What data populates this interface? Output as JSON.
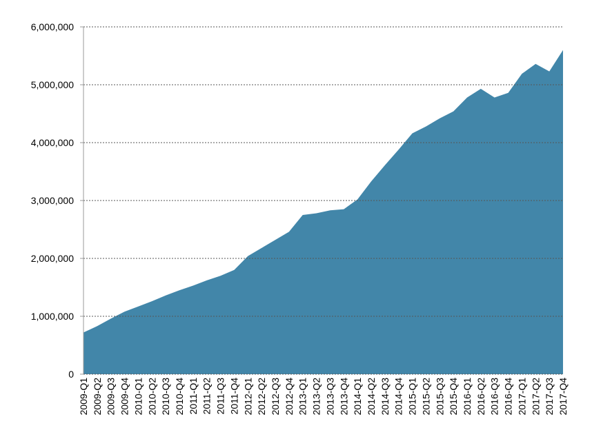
{
  "chart_data": {
    "type": "area",
    "color": "#4286a9",
    "grid": true,
    "categories": [
      "2009-Q1",
      "2009-Q2",
      "2009-Q3",
      "2009-Q4",
      "2010-Q1",
      "2010-Q2",
      "2010-Q3",
      "2010-Q4",
      "2011-Q1",
      "2011-Q2",
      "2011-Q3",
      "2011-Q4",
      "2012-Q1",
      "2012-Q2",
      "2012-Q3",
      "2012-Q4",
      "2013-Q1",
      "2013-Q2",
      "2013-Q3",
      "2013-Q4",
      "2014-Q1",
      "2014-Q2",
      "2014-Q3",
      "2014-Q4",
      "2015-Q1",
      "2015-Q2",
      "2015-Q3",
      "2015-Q4",
      "2016-Q1",
      "2016-Q2",
      "2016-Q3",
      "2016-Q4",
      "2017-Q1",
      "2017-Q2",
      "2017-Q3",
      "2017-Q4"
    ],
    "values": [
      720000,
      830000,
      960000,
      1080000,
      1170000,
      1260000,
      1360000,
      1450000,
      1530000,
      1620000,
      1700000,
      1800000,
      2040000,
      2180000,
      2320000,
      2460000,
      2750000,
      2780000,
      2830000,
      2850000,
      3020000,
      3330000,
      3610000,
      3880000,
      4160000,
      4280000,
      4420000,
      4540000,
      4780000,
      4930000,
      4780000,
      4860000,
      5190000,
      5360000,
      5230000,
      5600000
    ],
    "ylim": [
      0,
      6000000
    ],
    "yticks": [
      0,
      {
        "value": 1000000,
        "label": "1,000,000"
      },
      {
        "value": 2000000,
        "label": "2,000,000"
      },
      {
        "value": 3000000,
        "label": "3,000,000"
      },
      {
        "value": 4000000,
        "label": "4,000,000"
      },
      {
        "value": 5000000,
        "label": "5,000,000"
      },
      {
        "value": 6000000,
        "label": "6,000,000"
      }
    ]
  }
}
